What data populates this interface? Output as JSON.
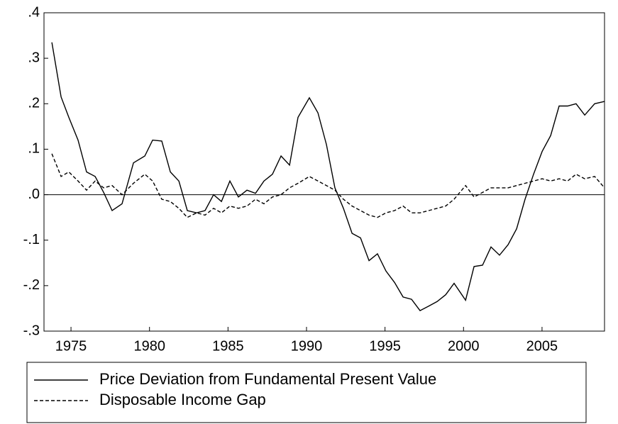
{
  "chart_data": {
    "type": "line",
    "x": [
      1973.78,
      1974.37,
      1974.86,
      1975.45,
      1975.99,
      1976.54,
      1977.08,
      1977.62,
      1978.25,
      1978.98,
      1979.7,
      1980.2,
      1980.78,
      1981.33,
      1981.87,
      1982.41,
      1983.0,
      1983.54,
      1984.08,
      1984.58,
      1985.12,
      1985.66,
      1986.21,
      1986.75,
      1987.29,
      1987.83,
      1988.38,
      1988.92,
      1989.46,
      1990.18,
      1990.73,
      1991.27,
      1991.81,
      1992.35,
      1992.9,
      1993.44,
      1993.98,
      1994.52,
      1995.06,
      1995.61,
      1996.15,
      1996.69,
      1997.23,
      1997.78,
      1998.32,
      1998.86,
      1999.4,
      2000.13,
      2000.67,
      2001.21,
      2001.75,
      2002.29,
      2002.84,
      2003.38,
      2003.92,
      2004.46,
      2005.01,
      2005.55,
      2006.09,
      2006.63,
      2007.17,
      2007.72,
      2008.35,
      2008.98
    ],
    "series": [
      {
        "name": "Price Deviation from Fundamental Present Value",
        "color": "#000000",
        "line_style": "solid",
        "values": [
          0.335,
          0.215,
          0.17,
          0.12,
          0.05,
          0.04,
          0.005,
          -0.035,
          -0.02,
          0.07,
          0.085,
          0.12,
          0.118,
          0.05,
          0.03,
          -0.035,
          -0.04,
          -0.035,
          0.0,
          -0.015,
          0.03,
          -0.005,
          0.01,
          0.003,
          0.03,
          0.045,
          0.085,
          0.065,
          0.17,
          0.213,
          0.18,
          0.11,
          0.015,
          -0.03,
          -0.085,
          -0.095,
          -0.145,
          -0.13,
          -0.168,
          -0.193,
          -0.225,
          -0.23,
          -0.255,
          -0.245,
          -0.235,
          -0.22,
          -0.195,
          -0.232,
          -0.158,
          -0.155,
          -0.115,
          -0.133,
          -0.11,
          -0.075,
          -0.01,
          0.045,
          0.095,
          0.13,
          0.195,
          0.195,
          0.2,
          0.175,
          0.2,
          0.205
        ]
      },
      {
        "name": "Disposable Income Gap",
        "color": "#000000",
        "line_style": "dashed",
        "values": [
          0.09,
          0.04,
          0.05,
          0.03,
          0.01,
          0.03,
          0.015,
          0.02,
          0.0,
          0.025,
          0.045,
          0.03,
          -0.01,
          -0.015,
          -0.03,
          -0.05,
          -0.04,
          -0.045,
          -0.03,
          -0.04,
          -0.025,
          -0.03,
          -0.025,
          -0.01,
          -0.02,
          -0.005,
          0.0,
          0.015,
          0.025,
          0.04,
          0.03,
          0.02,
          0.01,
          -0.01,
          -0.025,
          -0.035,
          -0.045,
          -0.05,
          -0.04,
          -0.035,
          -0.025,
          -0.04,
          -0.04,
          -0.035,
          -0.03,
          -0.025,
          -0.01,
          0.02,
          -0.005,
          0.005,
          0.015,
          0.015,
          0.015,
          0.02,
          0.025,
          0.03,
          0.035,
          0.03,
          0.035,
          0.03,
          0.045,
          0.035,
          0.04,
          0.015
        ]
      }
    ],
    "xlim": [
      1973.28,
      2008.98
    ],
    "xticks": [
      1975,
      1980,
      1985,
      1990,
      1995,
      2000,
      2005
    ],
    "ylim": [
      -0.3,
      0.4
    ],
    "yticks": [
      {
        "value": -0.3,
        "label": "-.3"
      },
      {
        "value": -0.2,
        "label": "-.2"
      },
      {
        "value": -0.1,
        "label": "-.1"
      },
      {
        "value": 0.0,
        "label": ".0"
      },
      {
        "value": 0.1,
        "label": ".1"
      },
      {
        "value": 0.2,
        "label": ".2"
      },
      {
        "value": 0.3,
        "label": ".3"
      },
      {
        "value": 0.4,
        "label": ".4"
      }
    ],
    "zero_line": true,
    "grid": false,
    "legend": "bottom"
  }
}
